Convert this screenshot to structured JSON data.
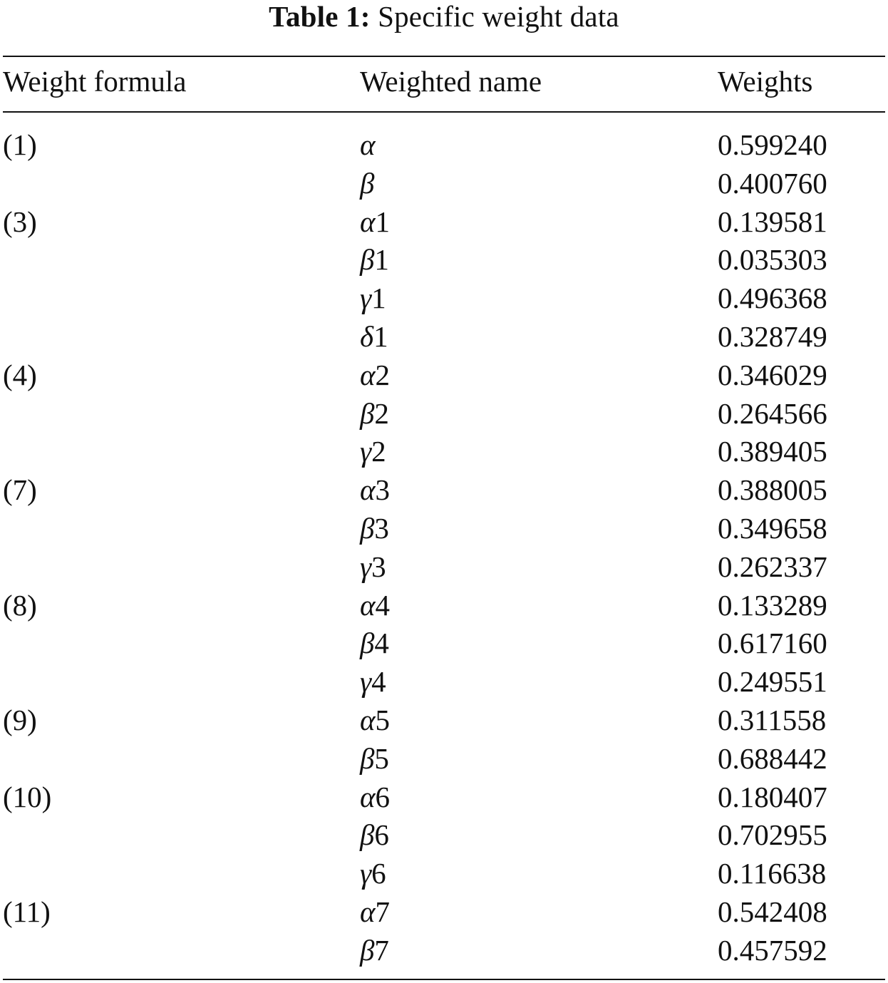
{
  "caption": {
    "label": "Table 1:",
    "title": "Specific weight data"
  },
  "table": {
    "headers": [
      "Weight formula",
      "Weighted name",
      "Weights"
    ],
    "rows": [
      {
        "formula": "(1)",
        "symbol": "α",
        "index": "",
        "weight": "0.599240"
      },
      {
        "formula": "",
        "symbol": "β",
        "index": "",
        "weight": "0.400760"
      },
      {
        "formula": "(3)",
        "symbol": "α",
        "index": "1",
        "weight": "0.139581"
      },
      {
        "formula": "",
        "symbol": "β",
        "index": "1",
        "weight": "0.035303"
      },
      {
        "formula": "",
        "symbol": "γ",
        "index": "1",
        "weight": "0.496368"
      },
      {
        "formula": "",
        "symbol": "δ",
        "index": "1",
        "weight": "0.328749"
      },
      {
        "formula": "(4)",
        "symbol": "α",
        "index": "2",
        "weight": "0.346029"
      },
      {
        "formula": "",
        "symbol": "β",
        "index": "2",
        "weight": "0.264566"
      },
      {
        "formula": "",
        "symbol": "γ",
        "index": "2",
        "weight": "0.389405"
      },
      {
        "formula": "(7)",
        "symbol": "α",
        "index": "3",
        "weight": "0.388005"
      },
      {
        "formula": "",
        "symbol": "β",
        "index": "3",
        "weight": "0.349658"
      },
      {
        "formula": "",
        "symbol": "γ",
        "index": "3",
        "weight": "0.262337"
      },
      {
        "formula": "(8)",
        "symbol": "α",
        "index": "4",
        "weight": "0.133289"
      },
      {
        "formula": "",
        "symbol": "β",
        "index": "4",
        "weight": "0.617160"
      },
      {
        "formula": "",
        "symbol": "γ",
        "index": "4",
        "weight": "0.249551"
      },
      {
        "formula": "(9)",
        "symbol": "α",
        "index": "5",
        "weight": "0.311558"
      },
      {
        "formula": "",
        "symbol": "β",
        "index": "5",
        "weight": "0.688442"
      },
      {
        "formula": "(10)",
        "symbol": "α",
        "index": "6",
        "weight": "0.180407"
      },
      {
        "formula": "",
        "symbol": "β",
        "index": "6",
        "weight": "0.702955"
      },
      {
        "formula": "",
        "symbol": "γ",
        "index": "6",
        "weight": "0.116638"
      },
      {
        "formula": "(11)",
        "symbol": "α",
        "index": "7",
        "weight": "0.542408"
      },
      {
        "formula": "",
        "symbol": "β",
        "index": "7",
        "weight": "0.457592"
      }
    ]
  }
}
